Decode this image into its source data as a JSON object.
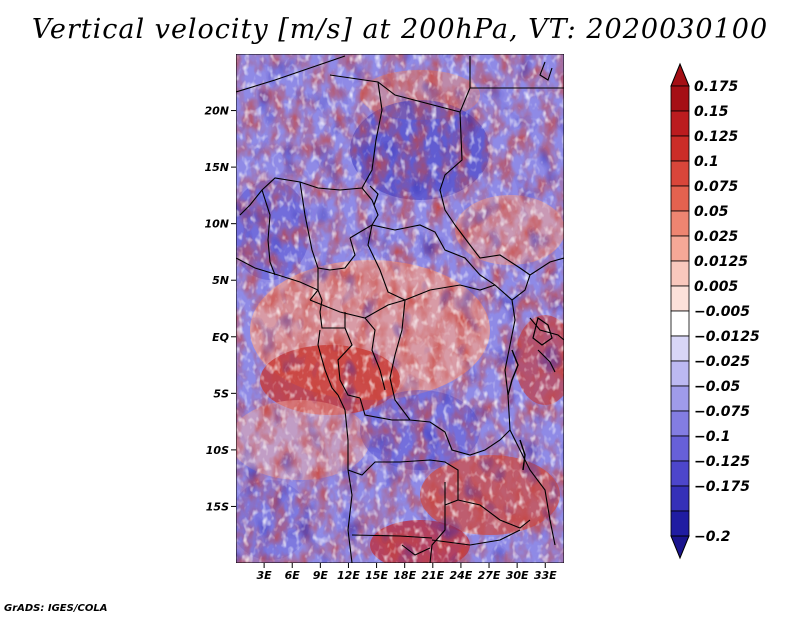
{
  "title": "Vertical velocity [m/s] at 200hPa, VT: 2020030100",
  "credit": "GrADS: IGES/COLA",
  "map": {
    "region": "Central and Southern Africa",
    "lon_range": [
      0,
      35
    ],
    "lat_range": [
      -20,
      25
    ],
    "lat_ticks": [
      {
        "value": 20,
        "label": "20N"
      },
      {
        "value": 15,
        "label": "15N"
      },
      {
        "value": 10,
        "label": "10N"
      },
      {
        "value": 5,
        "label": "5N"
      },
      {
        "value": 0,
        "label": "EQ"
      },
      {
        "value": -5,
        "label": "5S"
      },
      {
        "value": -10,
        "label": "10S"
      },
      {
        "value": -15,
        "label": "15S"
      }
    ],
    "lon_ticks": [
      {
        "value": 3,
        "label": "3E"
      },
      {
        "value": 6,
        "label": "6E"
      },
      {
        "value": 9,
        "label": "9E"
      },
      {
        "value": 12,
        "label": "12E"
      },
      {
        "value": 15,
        "label": "15E"
      },
      {
        "value": 18,
        "label": "18E"
      },
      {
        "value": 21,
        "label": "21E"
      },
      {
        "value": 24,
        "label": "24E"
      },
      {
        "value": 27,
        "label": "27E"
      },
      {
        "value": 30,
        "label": "30E"
      },
      {
        "value": 33,
        "label": "33E"
      }
    ]
  },
  "colorbar": {
    "levels": [
      {
        "label": "0.175",
        "color": "#a50f15"
      },
      {
        "label": "0.15",
        "color": "#bb1c1f"
      },
      {
        "label": "0.125",
        "color": "#cb2d28"
      },
      {
        "label": "0.1",
        "color": "#d9463a"
      },
      {
        "label": "0.075",
        "color": "#e4624f"
      },
      {
        "label": "0.05",
        "color": "#ee8571"
      },
      {
        "label": "0.025",
        "color": "#f5a897"
      },
      {
        "label": "0.0125",
        "color": "#f9c8bd"
      },
      {
        "label": "0.005",
        "color": "#fce1da"
      },
      {
        "label": "−0.005",
        "color": "#ffffff"
      },
      {
        "label": "−0.0125",
        "color": "#d8d6f7"
      },
      {
        "label": "−0.025",
        "color": "#bcb9f2"
      },
      {
        "label": "−0.05",
        "color": "#9f9bea"
      },
      {
        "label": "−0.075",
        "color": "#837de2"
      },
      {
        "label": "−0.1",
        "color": "#6760d8"
      },
      {
        "label": "−0.125",
        "color": "#4d46cb"
      },
      {
        "label": "−0.175",
        "color": "#3530b8"
      },
      {
        "label": "−0.2",
        "color": "#201ca2"
      }
    ],
    "top_arrow_color": "#a50f15",
    "bottom_arrow_color": "#1a148e"
  },
  "colors": {
    "strong_negative": "#3b36c0",
    "weak_negative": "#8a85e4",
    "neutral": "#ffffff",
    "weak_positive": "#f1a394",
    "strong_positive": "#c1201f"
  }
}
